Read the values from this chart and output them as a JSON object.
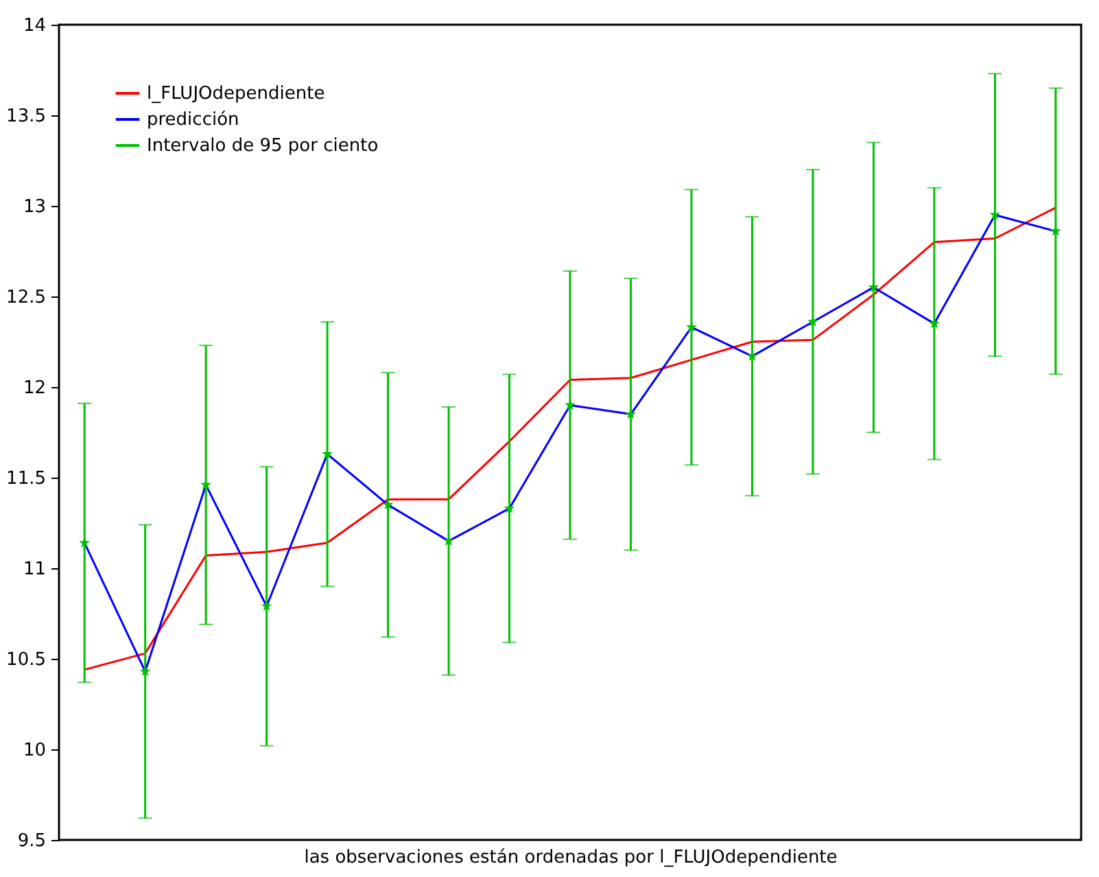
{
  "chart_data": {
    "type": "line",
    "xlabel": "las observaciones están ordenadas por l_FLUJOdependiente",
    "categories": [
      null,
      null,
      null,
      null,
      null,
      null,
      null,
      null,
      null,
      null,
      null,
      null,
      null,
      null,
      null,
      null,
      null
    ],
    "series": [
      {
        "name": "l_FLUJOdependiente",
        "color": "#ff0000",
        "values": [
          10.44,
          10.53,
          11.07,
          11.09,
          11.14,
          11.38,
          11.38,
          11.7,
          12.04,
          12.05,
          12.15,
          12.25,
          12.26,
          12.51,
          12.8,
          12.82,
          12.99
        ]
      },
      {
        "name": "predicción",
        "color": "#0000ff",
        "values": [
          11.14,
          10.43,
          11.46,
          10.79,
          11.63,
          11.35,
          11.15,
          11.33,
          11.9,
          11.85,
          12.33,
          12.17,
          12.36,
          12.55,
          12.35,
          12.95,
          12.86
        ]
      },
      {
        "name": "Intervalo de 95 por ciento",
        "type": "scatter",
        "marker": "star",
        "color": "#00c000",
        "values": [
          11.14,
          10.43,
          11.46,
          10.79,
          11.63,
          11.35,
          11.15,
          11.33,
          11.9,
          11.85,
          12.33,
          12.17,
          12.36,
          12.55,
          12.35,
          12.95,
          12.86
        ],
        "errors": [
          0.77,
          0.81,
          0.77,
          0.77,
          0.73,
          0.73,
          0.74,
          0.74,
          0.74,
          0.75,
          0.76,
          0.77,
          0.84,
          0.8,
          0.75,
          0.78,
          0.79
        ]
      }
    ],
    "ylim": [
      9.5,
      14
    ],
    "yticks": [
      9.5,
      10,
      10.5,
      11,
      11.5,
      12,
      12.5,
      13,
      13.5,
      14
    ],
    "grid": false,
    "legend": "top left",
    "tick_labels": "y"
  }
}
